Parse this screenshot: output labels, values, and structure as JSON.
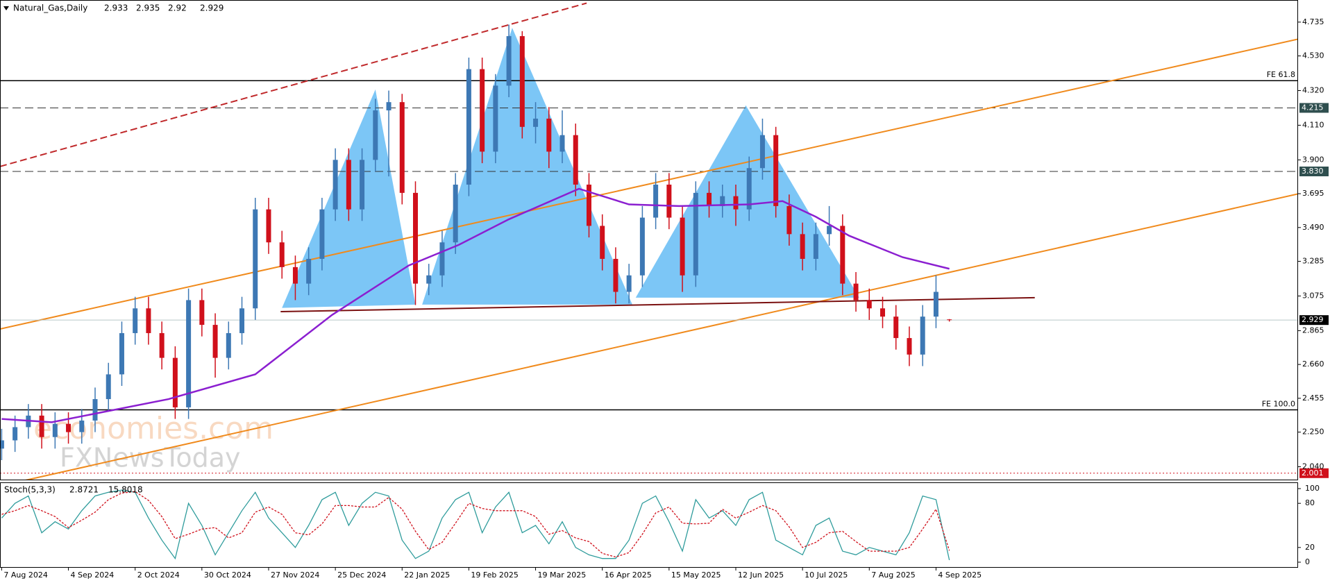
{
  "chart_data": {
    "type": "candlestick",
    "title": "Natural_Gas,Daily",
    "x": [
      0,
      4,
      8,
      12,
      16,
      20,
      24,
      28,
      32,
      36,
      40,
      44,
      48,
      52,
      56,
      60,
      64,
      68,
      72,
      76,
      80,
      84,
      88,
      92,
      96,
      100,
      104,
      108,
      112,
      116,
      120,
      124,
      128,
      132,
      136,
      140,
      144,
      148,
      152,
      156,
      160,
      164,
      168,
      172,
      176,
      180,
      184,
      188,
      192,
      196,
      200,
      204,
      208,
      212,
      216,
      220,
      224,
      228,
      232,
      236,
      240,
      244,
      248,
      252,
      256,
      260,
      264,
      268,
      272,
      276,
      280,
      284
    ],
    "open": [
      2.15,
      2.2,
      2.28,
      2.35,
      2.22,
      2.3,
      2.25,
      2.32,
      2.45,
      2.6,
      2.85,
      3.0,
      2.85,
      2.7,
      2.4,
      3.05,
      2.9,
      2.7,
      2.85,
      3.0,
      3.6,
      3.4,
      3.25,
      3.15,
      3.3,
      3.6,
      3.9,
      3.6,
      3.9,
      4.2,
      4.25,
      3.7,
      3.15,
      3.2,
      3.4,
      3.75,
      4.45,
      3.95,
      4.35,
      4.65,
      4.1,
      4.15,
      3.95,
      4.05,
      3.75,
      3.5,
      3.3,
      3.1,
      3.2,
      3.55,
      3.75,
      3.55,
      3.2,
      3.7,
      3.62,
      3.68,
      3.6,
      3.85,
      4.05,
      3.62,
      3.45,
      3.3,
      3.45,
      3.5,
      3.15,
      3.05,
      3.0,
      2.95,
      2.82,
      2.72,
      2.95,
      2.933
    ],
    "high": [
      2.27,
      2.35,
      2.42,
      2.42,
      2.37,
      2.37,
      2.39,
      2.52,
      2.67,
      2.92,
      3.07,
      3.07,
      2.92,
      2.77,
      3.12,
      3.12,
      2.97,
      2.92,
      3.07,
      3.67,
      3.67,
      3.47,
      3.32,
      3.37,
      3.67,
      3.97,
      3.97,
      3.97,
      4.27,
      4.32,
      4.3,
      3.77,
      3.27,
      3.47,
      3.82,
      4.52,
      4.52,
      4.42,
      4.72,
      4.68,
      4.25,
      4.22,
      4.2,
      4.12,
      3.82,
      3.57,
      3.37,
      3.27,
      3.62,
      3.82,
      3.82,
      3.62,
      3.77,
      3.77,
      3.75,
      3.75,
      3.92,
      4.15,
      4.1,
      3.69,
      3.52,
      3.52,
      3.62,
      3.57,
      3.22,
      3.12,
      3.07,
      3.02,
      2.89,
      3.02,
      3.2,
      2.935
    ],
    "low": [
      2.08,
      2.13,
      2.21,
      2.15,
      2.15,
      2.18,
      2.18,
      2.25,
      2.38,
      2.53,
      2.78,
      2.78,
      2.63,
      2.33,
      2.33,
      2.83,
      2.58,
      2.63,
      2.78,
      2.93,
      3.33,
      3.18,
      3.05,
      3.08,
      3.23,
      3.53,
      3.53,
      3.53,
      3.83,
      3.8,
      3.63,
      3.02,
      3.08,
      3.13,
      3.33,
      3.68,
      3.88,
      3.88,
      4.28,
      4.03,
      4.0,
      3.85,
      3.88,
      3.68,
      3.43,
      3.23,
      3.03,
      3.03,
      3.13,
      3.48,
      3.48,
      3.1,
      3.13,
      3.55,
      3.55,
      3.5,
      3.53,
      3.78,
      3.55,
      3.38,
      3.23,
      3.23,
      3.38,
      3.08,
      2.98,
      2.93,
      2.88,
      2.75,
      2.65,
      2.65,
      2.88,
      2.92
    ],
    "close": [
      2.2,
      2.28,
      2.35,
      2.22,
      2.3,
      2.25,
      2.32,
      2.45,
      2.6,
      2.85,
      3.0,
      2.85,
      2.7,
      2.4,
      3.05,
      2.9,
      2.7,
      2.85,
      3.0,
      3.6,
      3.4,
      3.25,
      3.15,
      3.3,
      3.6,
      3.9,
      3.6,
      3.9,
      4.2,
      4.25,
      3.7,
      3.15,
      3.2,
      3.4,
      3.75,
      4.45,
      3.95,
      4.35,
      4.65,
      4.1,
      4.15,
      3.95,
      4.05,
      3.75,
      3.5,
      3.3,
      3.1,
      3.2,
      3.55,
      3.75,
      3.55,
      3.2,
      3.7,
      3.62,
      3.68,
      3.6,
      3.85,
      4.05,
      3.62,
      3.45,
      3.3,
      3.45,
      3.5,
      3.15,
      3.05,
      3.0,
      2.95,
      2.82,
      2.72,
      2.95,
      3.1,
      2.929
    ],
    "colors": {
      "up": "#3d78b4",
      "down": "#d0101b"
    },
    "xlim": [
      -0.5,
      388.5
    ],
    "xticks": [
      {
        "value": 0,
        "label": "7 Aug 2024"
      },
      {
        "value": 20,
        "label": "4 Sep 2024"
      },
      {
        "value": 40,
        "label": "2 Oct 2024"
      },
      {
        "value": 60,
        "label": "30 Oct 2024"
      },
      {
        "value": 80,
        "label": "27 Nov 2024"
      },
      {
        "value": 100,
        "label": "25 Dec 2024"
      },
      {
        "value": 120,
        "label": "22 Jan 2025"
      },
      {
        "value": 140,
        "label": "19 Feb 2025"
      },
      {
        "value": 160,
        "label": "19 Mar 2025"
      },
      {
        "value": 180,
        "label": "16 Apr 2025"
      },
      {
        "value": 200,
        "label": "15 May 2025"
      },
      {
        "value": 220,
        "label": "12 Jun 2025"
      },
      {
        "value": 240,
        "label": "10 Jul 2025"
      },
      {
        "value": 260,
        "label": "7 Aug 2025"
      },
      {
        "value": 280,
        "label": "4 Sep 2025"
      }
    ],
    "ylim": [
      1.958,
      4.869
    ],
    "yticks": [
      {
        "value": 2.04,
        "label": "2.040"
      },
      {
        "value": 2.25,
        "label": "2.250"
      },
      2.455,
      {
        "value": 2.66,
        "label": "2.660"
      },
      2.865,
      3.075,
      3.285,
      {
        "value": 3.49,
        "label": "3.490"
      },
      3.695,
      {
        "value": 3.9,
        "label": "3.900"
      },
      {
        "value": 4.11,
        "label": "4.110"
      },
      {
        "value": 4.32,
        "label": "4.320"
      },
      {
        "value": 4.53,
        "label": "4.530"
      },
      4.735
    ],
    "moving_average": {
      "color": "#8b1fd0",
      "x": [
        0,
        15,
        50,
        76,
        99,
        122,
        137,
        152,
        173,
        188,
        203,
        224,
        234,
        244,
        254,
        270,
        284
      ],
      "values": [
        2.33,
        2.31,
        2.45,
        2.6,
        2.96,
        3.26,
        3.385,
        3.54,
        3.725,
        3.63,
        3.62,
        3.63,
        3.65,
        3.555,
        3.44,
        3.31,
        3.24
      ]
    },
    "patterns": [
      {
        "color": "#7cc6f6",
        "x": [
          84,
          112,
          124
        ],
        "y": [
          3.003,
          4.327,
          3.023
        ]
      },
      {
        "color": "#7cc6f6",
        "x": [
          126,
          153,
          189
        ],
        "y": [
          3.023,
          4.7,
          3.023
        ]
      },
      {
        "color": "#7cc6f6",
        "x": [
          190,
          223,
          257
        ],
        "y": [
          3.065,
          4.23,
          3.065
        ]
      }
    ],
    "trendlines": [
      {
        "color": "#f08a1c",
        "dashed": false,
        "x": [
          -0.5,
          388.5
        ],
        "y": [
          2.875,
          4.632
        ]
      },
      {
        "color": "#f08a1c",
        "dashed": false,
        "x": [
          7.1,
          388.5
        ],
        "y": [
          1.958,
          3.694
        ]
      },
      {
        "color": "#c0282a",
        "dashed": true,
        "x": [
          -0.5,
          175.3
        ],
        "y": [
          3.86,
          4.85
        ]
      },
      {
        "color": "#7a1010",
        "dashed": false,
        "x": [
          83.6,
          309.6
        ],
        "y": [
          2.98,
          3.065
        ]
      }
    ],
    "fib_levels": [
      {
        "label": "FE 61.8",
        "value": 4.38
      },
      {
        "label": "FE 100.0",
        "value": 2.385
      }
    ],
    "marked_levels": [
      4.215,
      {
        "value": 3.83,
        "label": "3.830"
      },
      2.001
    ],
    "stochastic": {
      "title": "Stoch(5,3,3)",
      "ylim": [
        0,
        100
      ],
      "yticks": [
        0,
        20,
        80,
        100
      ],
      "main": {
        "color": "#2f9c9c",
        "values": [
          60,
          80,
          90,
          40,
          55,
          45,
          70,
          90,
          95,
          98,
          95,
          60,
          30,
          5,
          80,
          50,
          10,
          40,
          70,
          95,
          60,
          40,
          20,
          50,
          85,
          95,
          50,
          80,
          95,
          90,
          30,
          5,
          15,
          60,
          85,
          95,
          40,
          75,
          95,
          40,
          50,
          25,
          55,
          20,
          10,
          5,
          5,
          30,
          80,
          90,
          55,
          15,
          85,
          60,
          70,
          50,
          85,
          95,
          30,
          20,
          10,
          50,
          60,
          15,
          10,
          20,
          15,
          10,
          40,
          90,
          85,
          2.8721
        ]
      },
      "signal": {
        "color": "#d0101b",
        "values": [
          65,
          70,
          77,
          70,
          62,
          47,
          57,
          68,
          85,
          94,
          96,
          84,
          62,
          32,
          38,
          45,
          47,
          33,
          40,
          68,
          75,
          65,
          40,
          37,
          52,
          77,
          77,
          75,
          75,
          88,
          72,
          42,
          17,
          27,
          53,
          80,
          73,
          70,
          70,
          70,
          62,
          38,
          43,
          33,
          28,
          12,
          7,
          13,
          38,
          67,
          75,
          53,
          52,
          53,
          72,
          60,
          68,
          77,
          70,
          48,
          20,
          27,
          40,
          42,
          28,
          15,
          15,
          15,
          20,
          45,
          72,
          15.8018
        ]
      }
    },
    "watermark": [
      "economies.com",
      "FXNewsToday"
    ]
  }
}
